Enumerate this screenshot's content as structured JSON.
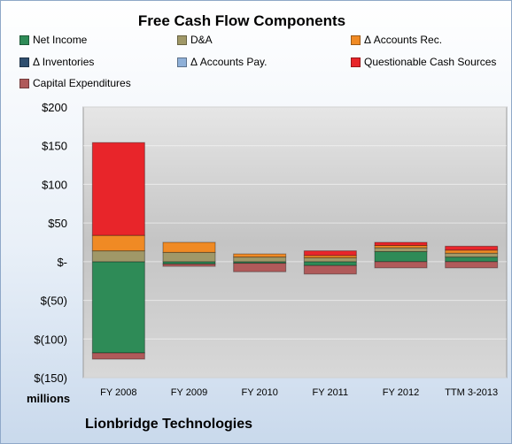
{
  "chart_data": {
    "type": "bar",
    "stacked": true,
    "title": "Free Cash Flow Components",
    "units_label": "millions",
    "footer": "Lionbridge Technologies",
    "categories": [
      "FY 2008",
      "FY 2009",
      "FY 2010",
      "FY 2011",
      "FY 2012",
      "TTM 3-2013"
    ],
    "y_ticks": [
      "$200",
      "$150",
      "$100",
      "$50",
      "$-",
      "$(50)",
      "$(100)",
      "$(150)"
    ],
    "ylim": [
      -150,
      200
    ],
    "legend_position": "top",
    "grid": true,
    "series": [
      {
        "name": "Net Income",
        "color": "#2e8b57",
        "values": [
          -118,
          -3,
          -2,
          -5,
          13,
          6
        ]
      },
      {
        "name": "D&A",
        "color": "#a09868",
        "values": [
          14,
          12,
          6,
          5,
          5,
          5
        ]
      },
      {
        "name": "Δ Accounts Rec.",
        "color": "#f08a24",
        "values": [
          20,
          13,
          4,
          3,
          3,
          4
        ]
      },
      {
        "name": "Δ Inventories",
        "color": "#2f4f6f",
        "values": [
          0,
          0,
          0,
          0,
          0,
          0
        ]
      },
      {
        "name": "Δ Accounts Pay.",
        "color": "#8fb0d8",
        "values": [
          0,
          0,
          0,
          0,
          0,
          0
        ]
      },
      {
        "name": "Questionable Cash Sources",
        "color": "#e8252a",
        "values": [
          120,
          0,
          0,
          6,
          4,
          5
        ]
      },
      {
        "name": "Capital Expenditures",
        "color": "#b05a5a",
        "values": [
          -8,
          -3,
          -11,
          -11,
          -8,
          -8
        ]
      }
    ]
  }
}
